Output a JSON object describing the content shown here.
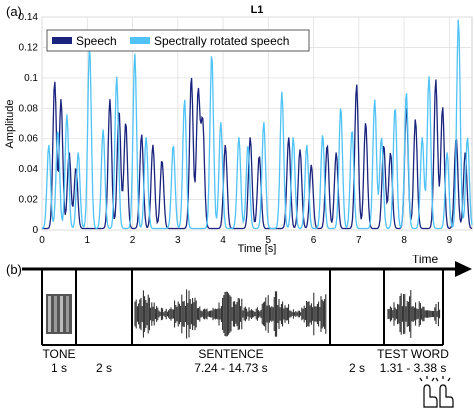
{
  "panels": {
    "a": "(a)",
    "b": "(b)"
  },
  "chart_data": {
    "type": "line",
    "title": "L1",
    "xlabel": "Time [s]",
    "ylabel": "Amplitude",
    "xlim": [
      0,
      9.5
    ],
    "ylim": [
      0,
      0.14
    ],
    "x_ticks": [
      0,
      1,
      2,
      3,
      4,
      5,
      6,
      7,
      8,
      9
    ],
    "x_tick_labels": [
      "0",
      "1",
      "2",
      "3",
      "4",
      "5",
      "6",
      "7",
      "8",
      "9"
    ],
    "y_ticks": [
      0,
      0.02,
      0.04,
      0.06,
      0.08,
      0.1,
      0.12,
      0.14
    ],
    "y_tick_labels": [
      "0",
      "0.02",
      "0.04",
      "0.06",
      "0.08",
      "0.1",
      "0.12",
      "0.14"
    ],
    "grid": true,
    "legend_position": "top-left",
    "series": [
      {
        "name": "Speech",
        "color": "#1a237e",
        "peaks": [
          [
            0.28,
            0.097
          ],
          [
            0.42,
            0.085
          ],
          [
            0.6,
            0.05
          ],
          [
            0.75,
            0.04
          ],
          [
            1.5,
            0.085
          ],
          [
            1.7,
            0.078
          ],
          [
            1.85,
            0.07
          ],
          [
            2.2,
            0.062
          ],
          [
            2.45,
            0.055
          ],
          [
            2.65,
            0.045
          ],
          [
            3.3,
            0.1
          ],
          [
            3.45,
            0.09
          ],
          [
            3.55,
            0.07
          ],
          [
            4.05,
            0.055
          ],
          [
            4.6,
            0.06
          ],
          [
            4.8,
            0.048
          ],
          [
            5.45,
            0.06
          ],
          [
            5.7,
            0.052
          ],
          [
            5.95,
            0.042
          ],
          [
            6.3,
            0.055
          ],
          [
            6.5,
            0.05
          ],
          [
            6.95,
            0.095
          ],
          [
            7.15,
            0.07
          ],
          [
            7.55,
            0.055
          ],
          [
            7.7,
            0.05
          ],
          [
            8.05,
            0.08
          ],
          [
            8.25,
            0.072
          ],
          [
            8.7,
            0.098
          ],
          [
            8.85,
            0.08
          ],
          [
            9.15,
            0.06
          ],
          [
            9.35,
            0.05
          ]
        ]
      },
      {
        "name": "Spectrally rotated speech",
        "color": "#4fc3f7",
        "peaks": [
          [
            0.15,
            0.055
          ],
          [
            0.35,
            0.065
          ],
          [
            0.55,
            0.075
          ],
          [
            0.8,
            0.05
          ],
          [
            1.05,
            0.12
          ],
          [
            1.35,
            0.065
          ],
          [
            1.65,
            0.1
          ],
          [
            2.05,
            0.115
          ],
          [
            2.3,
            0.06
          ],
          [
            2.9,
            0.055
          ],
          [
            3.15,
            0.085
          ],
          [
            3.75,
            0.115
          ],
          [
            3.95,
            0.07
          ],
          [
            4.35,
            0.06
          ],
          [
            4.55,
            0.055
          ],
          [
            4.9,
            0.07
          ],
          [
            5.3,
            0.09
          ],
          [
            5.55,
            0.06
          ],
          [
            5.85,
            0.055
          ],
          [
            6.2,
            0.062
          ],
          [
            6.6,
            0.08
          ],
          [
            6.85,
            0.065
          ],
          [
            7.35,
            0.085
          ],
          [
            7.5,
            0.06
          ],
          [
            7.8,
            0.08
          ],
          [
            8.05,
            0.09
          ],
          [
            8.4,
            0.06
          ],
          [
            8.55,
            0.1
          ],
          [
            8.95,
            0.05
          ],
          [
            9.2,
            0.138
          ],
          [
            9.4,
            0.06
          ]
        ]
      }
    ]
  },
  "timeline": {
    "time_label": "Time",
    "segments": [
      {
        "name": "TONE",
        "duration": "1 s"
      },
      {
        "gap": "2 s"
      },
      {
        "name": "SENTENCE",
        "duration": "7.24 - 14.73 s"
      },
      {
        "gap": "2 s"
      },
      {
        "name": "TEST WORD",
        "duration": "1.31 - 3.38 s"
      }
    ],
    "response_icon": "hand-click-icon"
  }
}
